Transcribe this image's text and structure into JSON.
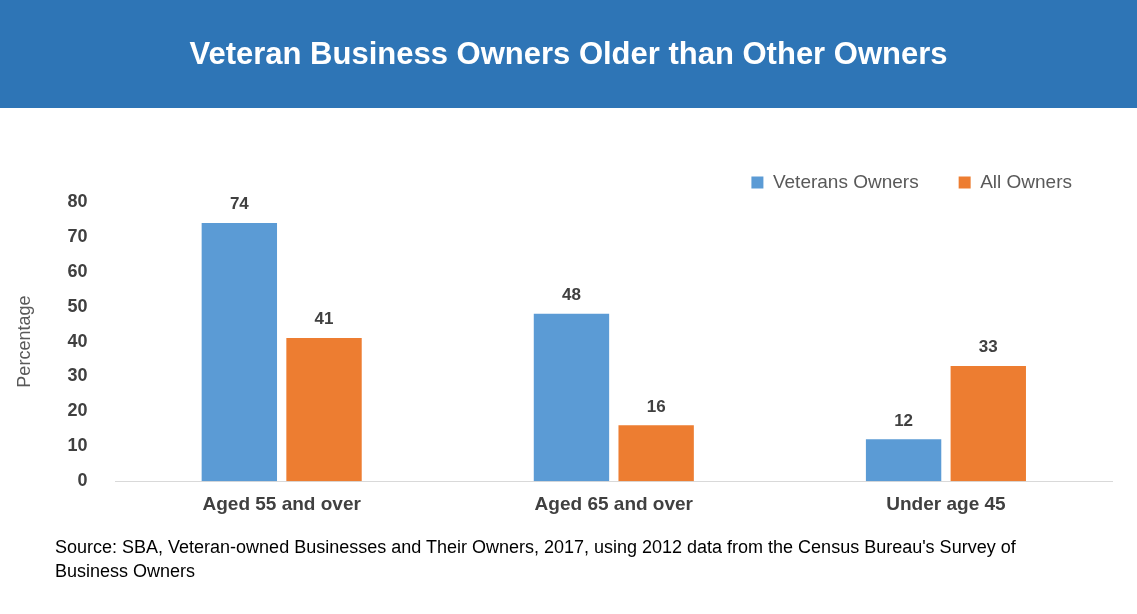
{
  "chart_data": {
    "type": "bar",
    "title": "Veteran Business Owners Older than Other Owners",
    "ylabel": "Percentage",
    "categories": [
      "Aged 55 and over",
      "Aged 65 and over",
      "Under age 45"
    ],
    "series": [
      {
        "name": "Veterans Owners",
        "color": "#5b9bd5",
        "values": [
          74,
          48,
          12
        ]
      },
      {
        "name": "All Owners",
        "color": "#ed7d31",
        "values": [
          41,
          16,
          33
        ]
      }
    ],
    "ylim": [
      0,
      80
    ],
    "yticks": [
      0,
      10,
      20,
      30,
      40,
      50,
      60,
      70,
      80
    ],
    "grid": false,
    "legend": "top right",
    "data_labels": true,
    "annotations": [
      "Source: SBA, Veteran-owned Businesses and Their Owners, 2017, using 2012 data from the Census Bureau's Survey of Business Owners"
    ]
  }
}
